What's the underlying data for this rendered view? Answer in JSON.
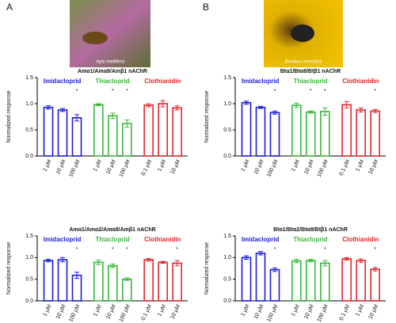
{
  "panels": [
    {
      "letter": "A",
      "caption": "Apis mellifera"
    },
    {
      "letter": "B",
      "caption": "Bombus terrestris"
    }
  ],
  "chart_data": [
    {
      "type": "bar",
      "title": "Amα1/Amα8/Amβ1 nAChR",
      "y_label": "Normalized response",
      "ylim": [
        0,
        1.5
      ],
      "yticks": [
        {
          "value": 0,
          "label": "0.0"
        },
        0.5,
        {
          "value": 1,
          "label": "1.0"
        },
        1.5
      ],
      "series": [
        {
          "name": "Imidacloprid",
          "color": "#1c1cd6",
          "categories": [
            "1 µM",
            "10 µM",
            "100 µM"
          ],
          "values": [
            0.93,
            0.88,
            0.73
          ],
          "errors": [
            0.03,
            0.03,
            0.06
          ],
          "stars": [
            null,
            null,
            "*"
          ]
        },
        {
          "name": "Thiacloprid",
          "color": "#3cb43c",
          "categories": [
            "1 µM",
            "10 µM",
            "100 µM"
          ],
          "values": [
            0.98,
            0.77,
            0.62
          ],
          "errors": [
            0.02,
            0.05,
            0.07
          ],
          "stars": [
            null,
            "*",
            "*"
          ]
        },
        {
          "name": "Clothianidin",
          "color": "#e0262b",
          "categories": [
            "0.1 µM",
            "1 µM",
            "10 µM"
          ],
          "values": [
            0.97,
            1.0,
            0.92
          ],
          "errors": [
            0.03,
            0.06,
            0.04
          ],
          "stars": [
            null,
            null,
            null
          ]
        }
      ]
    },
    {
      "type": "bar",
      "title": "Btα1/Btα8/Btβ1 nAChR",
      "y_label": "Normalized response",
      "ylim": [
        0,
        1.5
      ],
      "yticks": [
        {
          "value": 0,
          "label": "0.0"
        },
        0.5,
        {
          "value": 1,
          "label": "1.0"
        },
        1.5
      ],
      "series": [
        {
          "name": "Imidacloprid",
          "color": "#1c1cd6",
          "categories": [
            "1 µM",
            "10 µM",
            "100 µM"
          ],
          "values": [
            1.02,
            0.93,
            0.83
          ],
          "errors": [
            0.03,
            0.02,
            0.03
          ],
          "stars": [
            null,
            null,
            "*"
          ]
        },
        {
          "name": "Thiacloprid",
          "color": "#3cb43c",
          "categories": [
            "1 µM",
            "10 µM",
            "100 µM"
          ],
          "values": [
            0.97,
            0.84,
            0.85
          ],
          "errors": [
            0.04,
            0.02,
            0.07
          ],
          "stars": [
            null,
            "*",
            "*"
          ]
        },
        {
          "name": "Clothianidin",
          "color": "#e0262b",
          "categories": [
            "0.1 µM",
            "1 µM",
            "10 µM"
          ],
          "values": [
            0.98,
            0.88,
            0.86
          ],
          "errors": [
            0.06,
            0.04,
            0.03
          ],
          "stars": [
            null,
            null,
            "*"
          ]
        }
      ]
    },
    {
      "type": "bar",
      "title": "Amα1/Amα2/Amα8/Amβ1 nAChR",
      "y_label": "Normalized response",
      "ylim": [
        0,
        1.5
      ],
      "yticks": [
        {
          "value": 0,
          "label": "0.0"
        },
        0.5,
        {
          "value": 1,
          "label": "1.0"
        },
        1.5
      ],
      "series": [
        {
          "name": "Imidacloprid",
          "color": "#1c1cd6",
          "categories": [
            "1 µM",
            "10 µM",
            "100 µM"
          ],
          "values": [
            0.93,
            0.95,
            0.59
          ],
          "errors": [
            0.03,
            0.05,
            0.07
          ],
          "stars": [
            null,
            null,
            "*"
          ]
        },
        {
          "name": "Thiacloprid",
          "color": "#3cb43c",
          "categories": [
            "1 µM",
            "10 µM",
            "100 µM"
          ],
          "values": [
            0.89,
            0.81,
            0.5
          ],
          "errors": [
            0.05,
            0.04,
            0.03
          ],
          "stars": [
            null,
            "*",
            "*"
          ]
        },
        {
          "name": "Clothianidin",
          "color": "#e0262b",
          "categories": [
            "0.1 µM",
            "1 µM",
            "10 µM"
          ],
          "values": [
            0.95,
            0.89,
            0.87
          ],
          "errors": [
            0.03,
            0.02,
            0.06
          ],
          "stars": [
            null,
            null,
            "*"
          ]
        }
      ]
    },
    {
      "type": "bar",
      "title": "Btα1/Btα2/Btα8/Btβ1 nAChR",
      "y_label": "Normalized response",
      "ylim": [
        0,
        1.5
      ],
      "yticks": [
        {
          "value": 0,
          "label": "0.0"
        },
        0.5,
        {
          "value": 1,
          "label": "1.0"
        },
        1.5
      ],
      "series": [
        {
          "name": "Imidacloprid",
          "color": "#1c1cd6",
          "categories": [
            "1 µM",
            "10 µM",
            "100 µM"
          ],
          "values": [
            1.0,
            1.1,
            0.72
          ],
          "errors": [
            0.04,
            0.04,
            0.04
          ],
          "stars": [
            null,
            null,
            "*"
          ]
        },
        {
          "name": "Thiacloprid",
          "color": "#3cb43c",
          "categories": [
            "1 µM",
            "10 µM",
            "100 µM"
          ],
          "values": [
            0.92,
            0.93,
            0.87
          ],
          "errors": [
            0.04,
            0.03,
            0.06
          ],
          "stars": [
            null,
            null,
            "*"
          ]
        },
        {
          "name": "Clothianidin",
          "color": "#e0262b",
          "categories": [
            "0.1 µM",
            "1 µM",
            "10 µM"
          ],
          "values": [
            0.97,
            0.93,
            0.73
          ],
          "errors": [
            0.03,
            0.04,
            0.04
          ],
          "stars": [
            null,
            null,
            "*"
          ]
        }
      ]
    }
  ]
}
